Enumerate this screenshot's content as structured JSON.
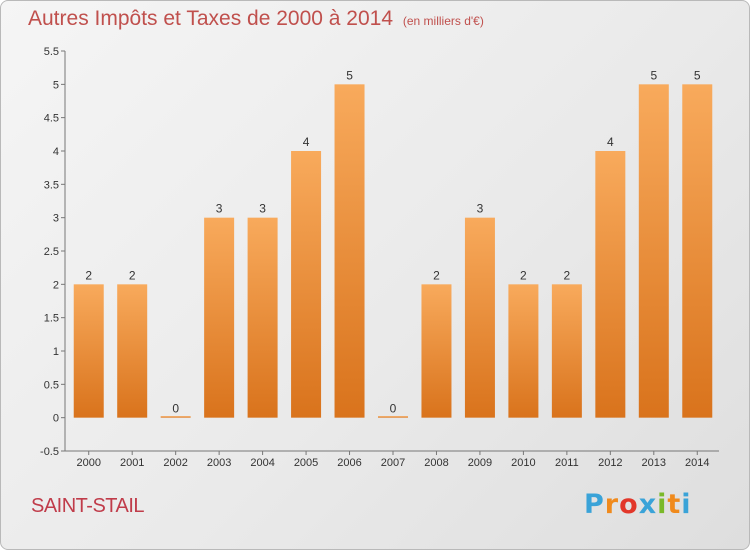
{
  "title": "Autres Impôts et Taxes de 2000 à 2014",
  "unit": "(en milliers d'€)",
  "commune": "SAINT-STAIL",
  "brand": [
    "P",
    "r",
    "o",
    "x",
    "i",
    "t",
    "i"
  ],
  "colors": {
    "bar_light": "#f8aa5c",
    "bar_dark": "#d9731c",
    "brand": [
      "#3aa3d8",
      "#f08a1c",
      "#e2372a",
      "#3aa3d8",
      "#7ab929",
      "#f08a1c",
      "#3aa3d8"
    ]
  },
  "chart_data": {
    "type": "bar",
    "categories": [
      "2000",
      "2001",
      "2002",
      "2003",
      "2004",
      "2005",
      "2006",
      "2007",
      "2008",
      "2009",
      "2010",
      "2011",
      "2012",
      "2013",
      "2014"
    ],
    "values": [
      2,
      2,
      0,
      3,
      3,
      4,
      5,
      0,
      2,
      3,
      2,
      2,
      4,
      5,
      5
    ],
    "y_ticks": [
      "-0.5",
      "0",
      "0.5",
      "1",
      "1.5",
      "2",
      "2.5",
      "3",
      "3.5",
      "4",
      "4.5",
      "5",
      "5.5"
    ],
    "ylim": [
      -0.5,
      5.5
    ],
    "grid": false
  }
}
